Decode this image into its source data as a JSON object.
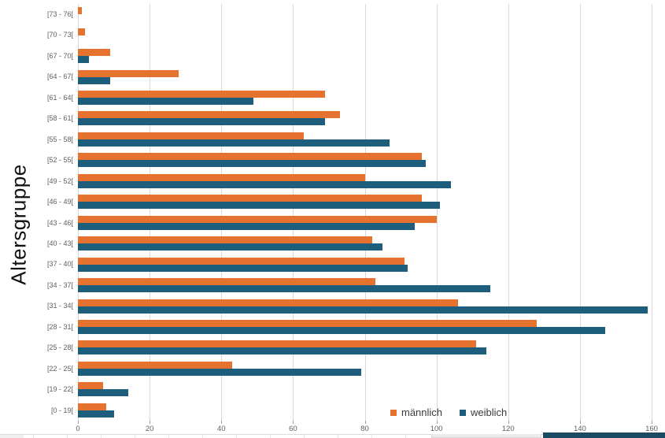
{
  "chart_data": {
    "type": "bar",
    "orientation": "horizontal",
    "title": "",
    "ylabel": "Altersgruppe",
    "xlabel": "",
    "xlim": [
      0,
      160
    ],
    "x_ticks": [
      0,
      20,
      40,
      60,
      80,
      100,
      120,
      140,
      160
    ],
    "grid": "vertical",
    "legend_position": "bottom-center",
    "categories": [
      "[73 - 76[",
      "[70 - 73[",
      "[67 - 70[",
      "[64 - 67[",
      "[61 - 64[",
      "[58 - 61[",
      "[55 - 58[",
      "[52 - 55[",
      "[49 - 52[",
      "[46 - 49[",
      "[43 - 46[",
      "[40 - 43[",
      "[37 - 40[",
      "[34 - 37[",
      "[31 - 34[",
      "[28 - 31[",
      "[25 - 28[",
      "[22 - 25[",
      "[19 - 22[",
      "[0 - 19["
    ],
    "series": [
      {
        "name": "männlich",
        "color": "#e5722f",
        "values": [
          1,
          2,
          9,
          28,
          69,
          73,
          63,
          96,
          80,
          96,
          100,
          82,
          91,
          83,
          106,
          128,
          111,
          43,
          7,
          8
        ]
      },
      {
        "name": "weiblich",
        "color": "#1e5e7d",
        "values": [
          0,
          0,
          3,
          9,
          49,
          69,
          87,
          97,
          104,
          101,
          94,
          85,
          92,
          115,
          159,
          147,
          114,
          79,
          14,
          10
        ]
      }
    ]
  },
  "colors": {
    "gridline": "#d9d9d9",
    "axis_text": "#5f5f5f",
    "title_text": "#111111",
    "legend_text": "#3c3c3c",
    "scrollbar_strip": "#1b4a63",
    "background": "#ffffff"
  }
}
